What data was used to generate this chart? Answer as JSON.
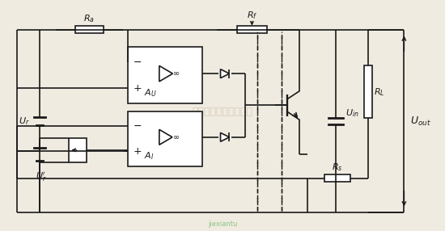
{
  "bg_color": "#f0ebe0",
  "line_color": "#1a1a1a",
  "fig_width": 5.5,
  "fig_height": 2.86,
  "dpi": 100,
  "watermark": "杭州瑞睿科技有限公司",
  "watermark_color": "#b8a888",
  "label_Ra": "$R_a$",
  "label_Rf": "$R_f$",
  "label_AU": "$A_U$",
  "label_AI": "$A_I$",
  "label_Ur": "$U_r$",
  "label_Urp": "$U_r'$",
  "label_Uin": "$U_{in}$",
  "label_RL": "$R_L$",
  "label_Rs": "$R_s$",
  "label_Uout": "$U_{out}$"
}
